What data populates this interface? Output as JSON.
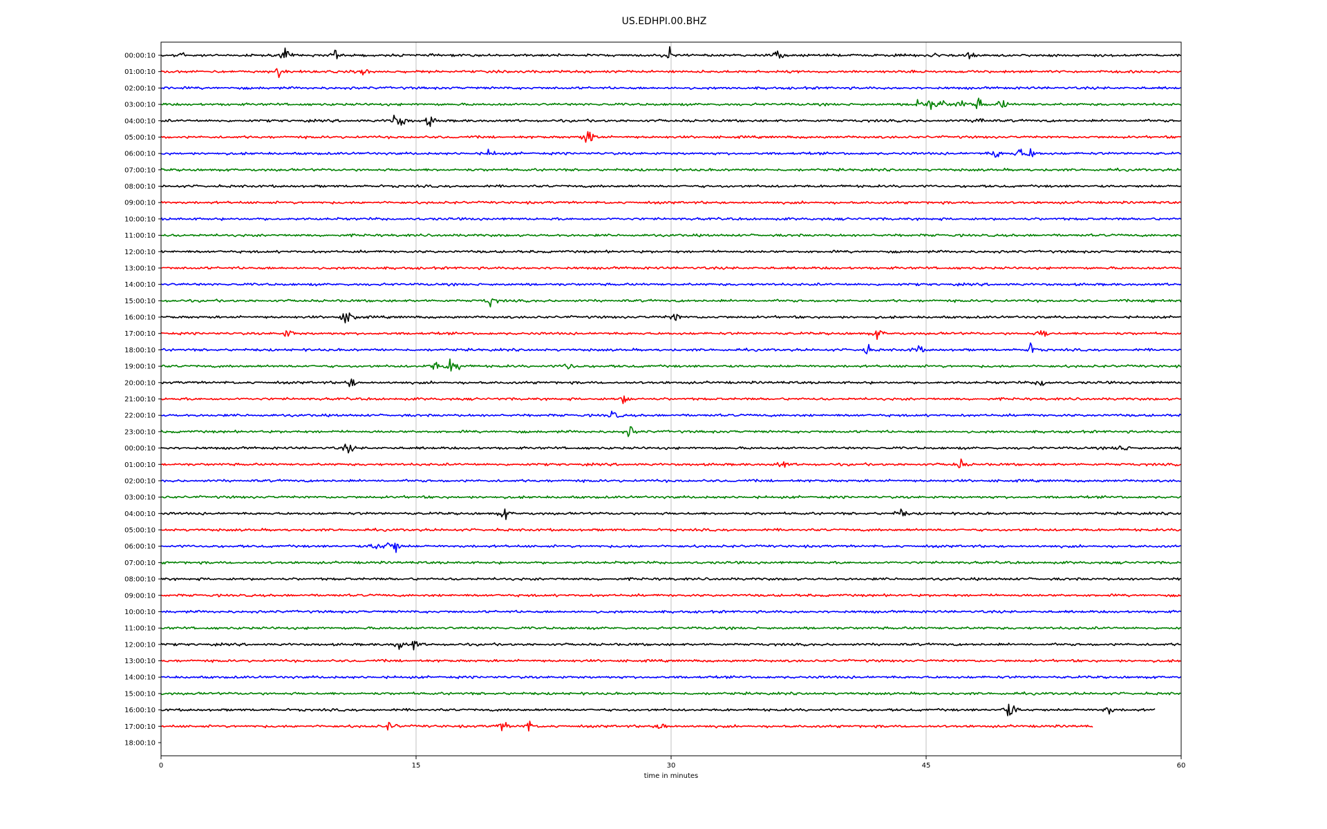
{
  "chart_data": {
    "type": "line",
    "title": "US.EDHPI.00.BHZ",
    "xlabel": "time in minutes",
    "ylabel": "",
    "xlim": [
      0,
      60
    ],
    "x_ticks": [
      "0",
      "15",
      "30",
      "45",
      "60"
    ],
    "grid": "vertical lines at 15, 30, 45",
    "row_labels": [
      "00:00:10",
      "01:00:10",
      "02:00:10",
      "03:00:10",
      "04:00:10",
      "05:00:10",
      "06:00:10",
      "07:00:10",
      "08:00:10",
      "09:00:10",
      "10:00:10",
      "11:00:10",
      "12:00:10",
      "13:00:10",
      "14:00:10",
      "15:00:10",
      "16:00:10",
      "17:00:10",
      "18:00:10",
      "19:00:10",
      "20:00:10",
      "21:00:10",
      "22:00:10",
      "23:00:10",
      "00:00:10",
      "01:00:10",
      "02:00:10",
      "03:00:10",
      "04:00:10",
      "05:00:10",
      "06:00:10",
      "07:00:10",
      "08:00:10",
      "09:00:10",
      "10:00:10",
      "11:00:10",
      "12:00:10",
      "13:00:10",
      "14:00:10",
      "15:00:10",
      "16:00:10",
      "17:00:10",
      "18:00:10"
    ],
    "color_cycle": [
      "#000000",
      "#ff0000",
      "#0000ff",
      "#008000"
    ],
    "trace_end_minutes": {
      "16:00:10 (day 2)": 58.5,
      "17:00:10 (day 2)": 54.8,
      "18:00:10 (day 2)": null
    },
    "notable_events": [
      {
        "row": "00:00:10",
        "minutes": [
          1.1,
          7.3,
          10.2,
          29.9,
          36.3,
          45.3,
          47.5
        ]
      },
      {
        "row": "01:00:10",
        "minutes": [
          6.9,
          11.9
        ]
      },
      {
        "row": "03:00:10",
        "minutes": [
          44.5,
          45.2,
          45.9,
          47.0,
          48.1,
          49.5
        ]
      },
      {
        "row": "04:00:10",
        "minutes": [
          13.7,
          14.2,
          15.8,
          48.2
        ]
      },
      {
        "row": "05:00:10",
        "minutes": [
          25.0,
          25.4
        ]
      },
      {
        "row": "06:00:10",
        "minutes": [
          19.4,
          49.1,
          50.5,
          51.2
        ]
      },
      {
        "row": "15:00:10",
        "minutes": [
          19.4,
          58.4
        ]
      },
      {
        "row": "16:00:10",
        "minutes": [
          10.8,
          11.3,
          30.2
        ]
      },
      {
        "row": "17:00:10",
        "minutes": [
          7.5,
          42.2,
          51.9
        ]
      },
      {
        "row": "18:00:10",
        "minutes": [
          41.5,
          44.5,
          51.2
        ]
      },
      {
        "row": "19:00:10",
        "minutes": [
          16.1,
          17.0,
          17.5,
          24.0
        ]
      },
      {
        "row": "20:00:10",
        "minutes": [
          11.2,
          51.8
        ]
      },
      {
        "row": "21:00:10",
        "minutes": [
          27.3
        ]
      },
      {
        "row": "22:00:10",
        "minutes": [
          26.6
        ]
      },
      {
        "row": "23:00:10",
        "minutes": [
          27.6
        ]
      },
      {
        "row": "00:00:10 (day 2)",
        "minutes": [
          11.0,
          56.5
        ]
      },
      {
        "row": "01:00:10 (day 2)",
        "minutes": [
          36.5,
          47.0
        ]
      },
      {
        "row": "04:00:10 (day 2)",
        "minutes": [
          20.2,
          43.5
        ]
      },
      {
        "row": "06:00:10 (day 2)",
        "minutes": [
          12.6,
          13.4,
          13.8
        ]
      },
      {
        "row": "12:00:10 (day 2)",
        "minutes": [
          14.0,
          14.9
        ]
      },
      {
        "row": "16:00:10 (day 2)",
        "minutes": [
          49.8,
          50.1,
          55.7
        ]
      },
      {
        "row": "17:00:10 (day 2)",
        "minutes": [
          13.5,
          20.1,
          21.6,
          29.5
        ]
      }
    ]
  }
}
